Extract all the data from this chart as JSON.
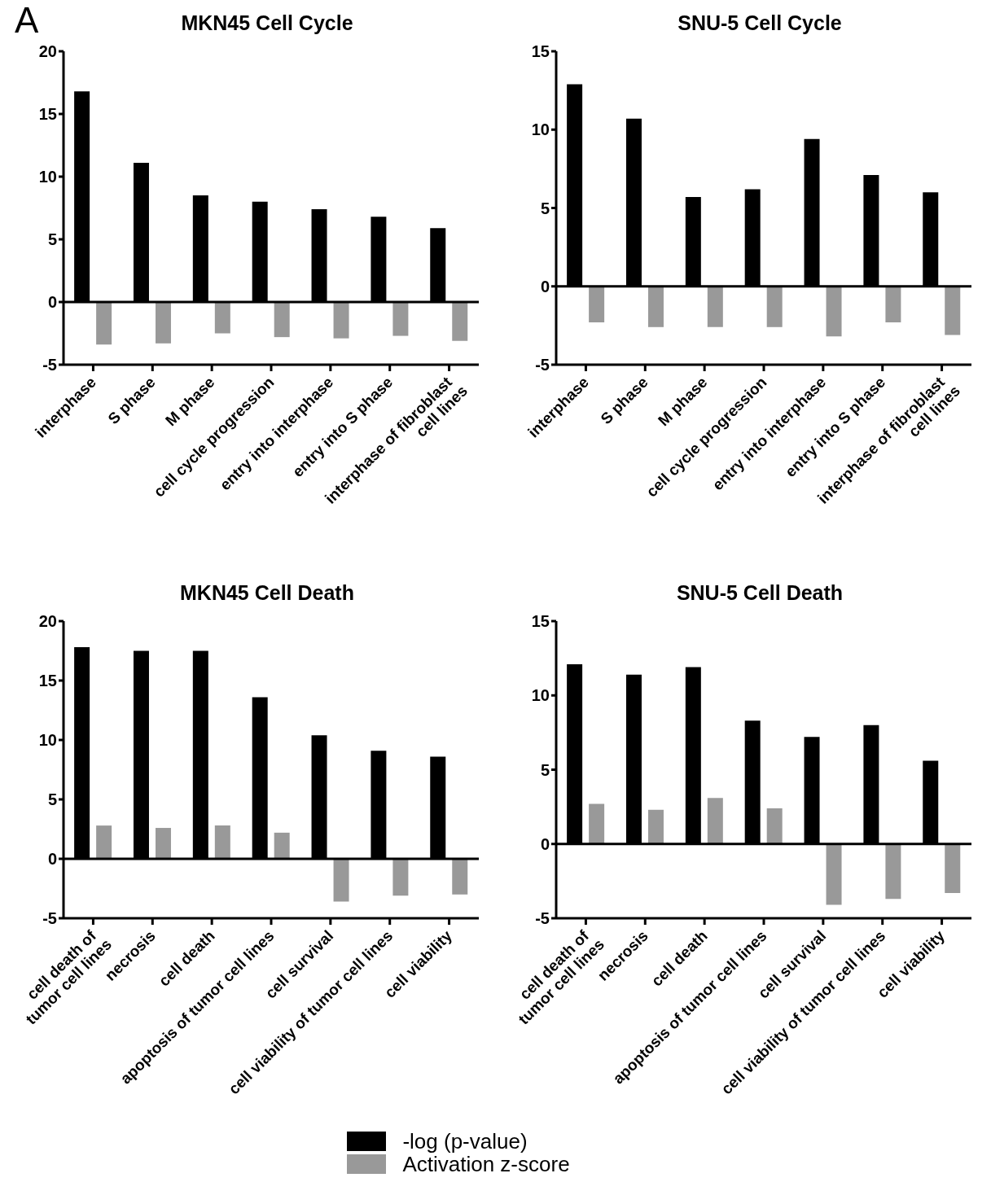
{
  "chart_data": [
    {
      "type": "bar",
      "title": "MKN45 Cell Cycle",
      "annotations": [
        "A"
      ],
      "categories": [
        "interphase",
        "S phase",
        "M phase",
        "cell cycle progression",
        "entry into interphase",
        "entry into S phase",
        "interphase of fibroblast\ncell lines"
      ],
      "series": [
        {
          "color": "#000000",
          "values": [
            16.8,
            11.1,
            8.5,
            8.0,
            7.4,
            6.8,
            5.9
          ]
        },
        {
          "color": "#999999",
          "values": [
            -3.4,
            -3.3,
            -2.5,
            -2.8,
            -2.9,
            -2.7,
            -3.1
          ]
        }
      ],
      "ylim": [
        -5,
        20
      ],
      "yticks": [
        -5,
        0,
        5,
        10,
        15,
        20
      ],
      "legend": false
    },
    {
      "type": "bar",
      "title": "SNU-5 Cell Cycle",
      "categories": [
        "interphase",
        "S phase",
        "M phase",
        "cell cycle progression",
        "entry into interphase",
        "entry into S phase",
        "interphase of fibroblast\ncell lines"
      ],
      "series": [
        {
          "color": "#000000",
          "values": [
            12.9,
            10.7,
            5.7,
            6.2,
            9.4,
            7.1,
            6.0
          ]
        },
        {
          "color": "#999999",
          "values": [
            -2.3,
            -2.6,
            -2.6,
            -2.6,
            -3.2,
            -2.3,
            -3.1
          ]
        }
      ],
      "ylim": [
        -5,
        15
      ],
      "yticks": [
        -5,
        0,
        5,
        10,
        15
      ],
      "legend": false
    },
    {
      "type": "bar",
      "title": "MKN45 Cell Death",
      "categories": [
        "cell death of\ntumor cell lines",
        "necrosis",
        "cell death",
        "apoptosis of tumor cell lines",
        "cell survival",
        "cell viability of tumor cell lines",
        "cell viability"
      ],
      "series": [
        {
          "color": "#000000",
          "values": [
            17.8,
            17.5,
            17.5,
            13.6,
            10.4,
            9.1,
            8.6
          ]
        },
        {
          "color": "#999999",
          "values": [
            2.8,
            2.6,
            2.8,
            2.2,
            -3.6,
            -3.1,
            -3.0
          ]
        }
      ],
      "ylim": [
        -5,
        20
      ],
      "yticks": [
        -5,
        0,
        5,
        10,
        15,
        20
      ],
      "legend": false
    },
    {
      "type": "bar",
      "title": "SNU-5 Cell Death",
      "categories": [
        "cell death of\ntumor cell lines",
        "necrosis",
        "cell death",
        "apoptosis of tumor cell lines",
        "cell survival",
        "cell viability of tumor cell lines",
        "cell viability"
      ],
      "series": [
        {
          "name": "-log (p-value)",
          "color": "#000000",
          "values": [
            12.1,
            11.4,
            11.9,
            8.3,
            7.2,
            8.0,
            5.6
          ]
        },
        {
          "name": "Activation z-score",
          "color": "#999999",
          "values": [
            2.7,
            2.3,
            3.1,
            2.4,
            -4.1,
            -3.7,
            -3.3
          ]
        }
      ],
      "ylim": [
        -5,
        15
      ],
      "yticks": [
        -5,
        0,
        5,
        10,
        15
      ],
      "legend": "bottom"
    }
  ]
}
